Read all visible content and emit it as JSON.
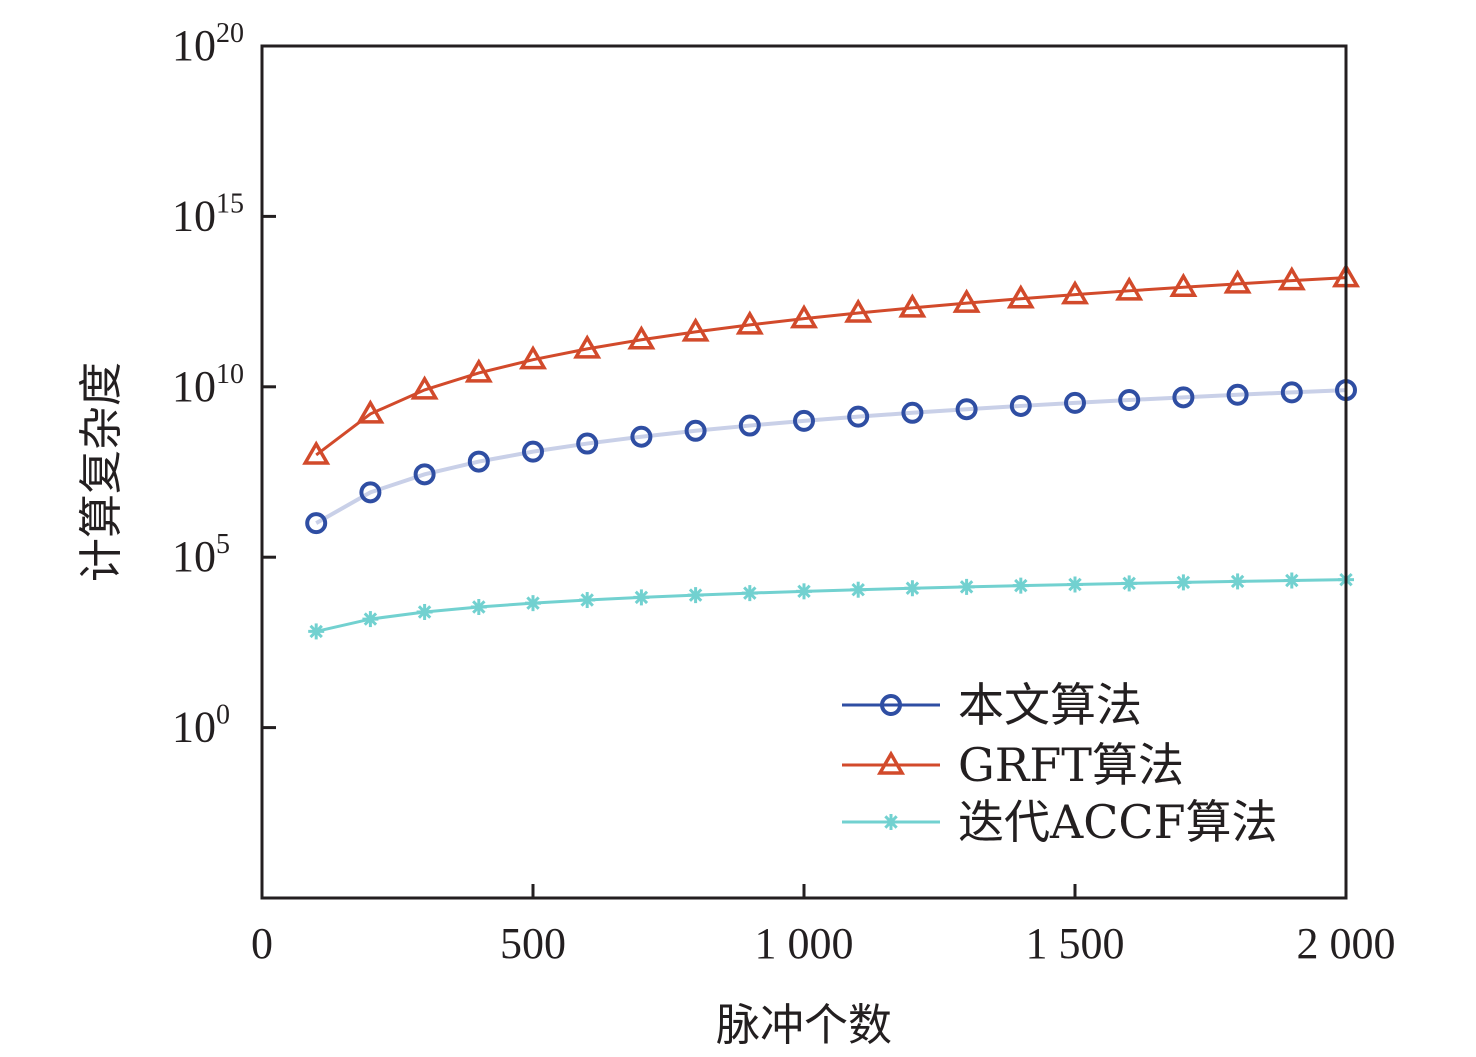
{
  "chart_data": {
    "type": "line",
    "title": "",
    "xlabel": "脉冲个数",
    "ylabel": "计算复杂度",
    "x_scale": "linear",
    "y_scale": "log",
    "xlim": [
      0,
      2000
    ],
    "ylim": [
      1e-05,
      1e+20
    ],
    "grid": false,
    "x_ticks": [
      0,
      500,
      1000,
      1500,
      2000
    ],
    "x_tick_labels": [
      "0",
      "500",
      "1 000",
      "1 500",
      "2 000"
    ],
    "y_ticks": [
      {
        "value": 1.0,
        "base": "10",
        "exp": "0"
      },
      {
        "value": 100000.0,
        "base": "10",
        "exp": "5"
      },
      {
        "value": 10000000000.0,
        "base": "10",
        "exp": "10"
      },
      {
        "value": 1000000000000000.0,
        "base": "10",
        "exp": "15"
      },
      {
        "value": 1e+20,
        "base": "10",
        "exp": "20"
      }
    ],
    "x": [
      100,
      200,
      300,
      400,
      500,
      600,
      700,
      800,
      900,
      1000,
      1100,
      1200,
      1300,
      1400,
      1500,
      1600,
      1700,
      1800,
      1900,
      2000
    ],
    "series": [
      {
        "name": "本文算法",
        "marker": "circle",
        "line_color": "#c9d0e8",
        "marker_color": "#2f4ea3",
        "legend_line_color": "#2f4ea3",
        "values": [
          1000000.0,
          8000000.0,
          27000000.0,
          64000000.0,
          125000000.0,
          216000000.0,
          343000000.0,
          512000000.0,
          729000000.0,
          1000000000.0,
          1331000000.0,
          1728000000.0,
          2197000000.0,
          2744000000.0,
          3375000000.0,
          4096000000.0,
          4913000000.0,
          5832000000.0,
          6859000000.0,
          8000000000.0
        ]
      },
      {
        "name": "GRFT算法",
        "marker": "triangle",
        "line_color": "#d24a2b",
        "marker_color": "#d24a2b",
        "legend_line_color": "#d24a2b",
        "values": [
          100000000.0,
          1600000000.0,
          8100000000.0,
          25600000000.0,
          62500000000.0,
          129600000000.0,
          240100000000.0,
          409600000000.0,
          656100000000.0,
          1000000000000.0,
          1464100000000.0,
          2073600000000.0,
          2856100000000.0,
          3841600000000.0,
          5062500000000.0,
          6553600000000.0,
          8352100000000.0,
          10497600000000.0,
          13032100000000.0,
          16000000000000.0
        ]
      },
      {
        "name": "迭代ACCF算法",
        "marker": "asterisk",
        "line_color": "#72d1d0",
        "marker_color": "#72d1d0",
        "legend_line_color": "#72d1d0",
        "values": [
          664,
          1529,
          2469,
          3458,
          4483,
          5537,
          6615,
          7715,
          8832,
          9966,
          11114,
          12275,
          13447,
          14631,
          15826,
          17030,
          18243,
          19465,
          20694,
          21932
        ]
      }
    ],
    "legend_position": "bottom-right"
  }
}
